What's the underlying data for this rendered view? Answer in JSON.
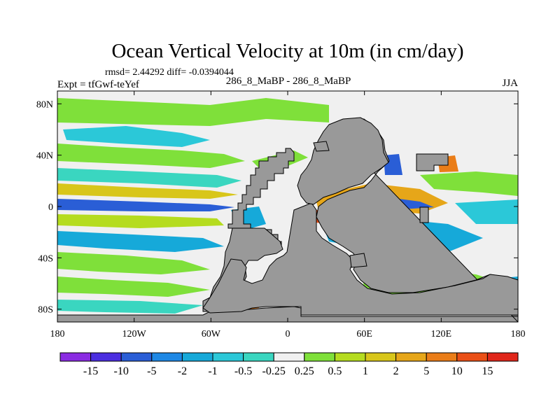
{
  "chart_data": {
    "type": "heatmap",
    "title": "Ocean Vertical Velocity at 10m (in cm/day)",
    "stats_text": "rmsd= 2.44292  diff= -0.0394044",
    "expt_label": "Expt = tfGwf-teYef",
    "center_label": "286_8_MaBP - 286_8_MaBP",
    "season_label": "JJA",
    "x_axis": {
      "range": [
        -180,
        180
      ],
      "ticks": [
        {
          "value": -180,
          "label": "180"
        },
        {
          "value": -120,
          "label": "120W"
        },
        {
          "value": -60,
          "label": "60W"
        },
        {
          "value": 0,
          "label": "0"
        },
        {
          "value": 60,
          "label": "60E"
        },
        {
          "value": 120,
          "label": "120E"
        },
        {
          "value": 180,
          "label": "180"
        }
      ]
    },
    "y_axis": {
      "range": [
        -90,
        90
      ],
      "ticks": [
        {
          "value": 80,
          "label": "80N"
        },
        {
          "value": 40,
          "label": "40N"
        },
        {
          "value": 0,
          "label": "0"
        },
        {
          "value": -40,
          "label": "40S"
        },
        {
          "value": -80,
          "label": "80S"
        }
      ]
    },
    "land_color": "#999999",
    "colorbar": {
      "colors": [
        "#8a2be2",
        "#4b2ee0",
        "#2a5ed6",
        "#1e88e5",
        "#16a9d9",
        "#2bc8d8",
        "#3ad6c0",
        "#f0f0f0",
        "#7fe03a",
        "#b5dc1f",
        "#d8c61a",
        "#e6a619",
        "#ea7d18",
        "#ea4f16",
        "#e0261a"
      ],
      "labels": [
        "-15",
        "-10",
        "-5",
        "-2",
        "-1",
        "-0.5",
        "-0.25",
        "0.25",
        "0.5",
        "1",
        "2",
        "5",
        "10",
        "15"
      ]
    }
  }
}
